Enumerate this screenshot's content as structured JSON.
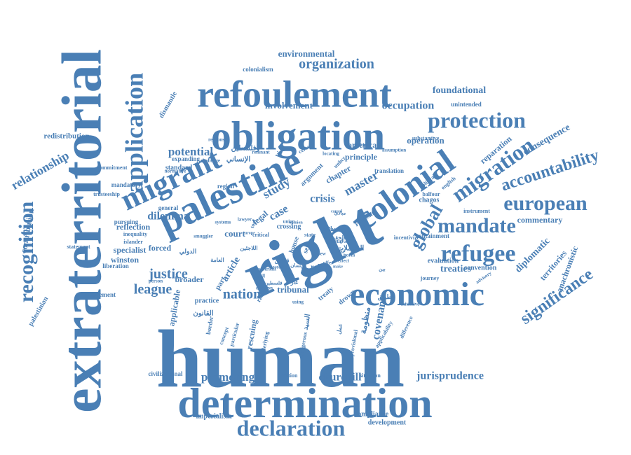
{
  "color": "#4a7fb5",
  "words": [
    {
      "text": "human"
    },
    {
      "text": "right"
    },
    {
      "text": "extraterritorial"
    },
    {
      "text": "determination"
    },
    {
      "text": "palestine"
    },
    {
      "text": "obligation"
    },
    {
      "text": "refoulement"
    },
    {
      "text": "colonial"
    },
    {
      "text": "economic"
    },
    {
      "text": "migrant"
    },
    {
      "text": "application"
    },
    {
      "text": "recognition"
    },
    {
      "text": "declaration"
    },
    {
      "text": "migration"
    },
    {
      "text": "protection"
    },
    {
      "text": "refugee"
    },
    {
      "text": "mandate"
    },
    {
      "text": "european"
    },
    {
      "text": "accountability"
    },
    {
      "text": "global"
    },
    {
      "text": "significance"
    },
    {
      "text": "organization"
    },
    {
      "text": "relationship"
    },
    {
      "text": "justice"
    },
    {
      "text": "league"
    },
    {
      "text": "nation"
    },
    {
      "text": "promoting"
    },
    {
      "text": "churchill"
    },
    {
      "text": "jurisprudence"
    },
    {
      "text": "occupation"
    },
    {
      "text": "potential"
    },
    {
      "text": "dilemma"
    },
    {
      "text": "foundational"
    },
    {
      "text": "consequence"
    },
    {
      "text": "study"
    },
    {
      "text": "master"
    },
    {
      "text": "crisis"
    },
    {
      "text": "case"
    },
    {
      "text": "covenant"
    },
    {
      "text": "treaties"
    },
    {
      "text": "diplomatic"
    },
    {
      "text": "contribution"
    },
    {
      "text": "environmental"
    },
    {
      "text": "involvement"
    },
    {
      "text": "operation"
    },
    {
      "text": "american"
    },
    {
      "text": "principle"
    },
    {
      "text": "chapter"
    },
    {
      "text": "court"
    },
    {
      "text": "article"
    },
    {
      "text": "legal"
    },
    {
      "text": "reflection"
    },
    {
      "text": "specialist"
    },
    {
      "text": "winston"
    },
    {
      "text": "forced"
    },
    {
      "text": "broader"
    },
    {
      "text": "applicable"
    },
    {
      "text": "rescuing"
    },
    {
      "text": "commentary"
    },
    {
      "text": "reparation"
    },
    {
      "text": "territories"
    },
    {
      "text": "anachronistic"
    },
    {
      "text": "redistribution"
    },
    {
      "text": "dismantle"
    },
    {
      "text": "palestinian"
    },
    {
      "text": "imperialism"
    },
    {
      "text": "compliance"
    },
    {
      "text": "development"
    },
    {
      "text": "colonialism"
    },
    {
      "text": "standard"
    },
    {
      "text": "expanding"
    },
    {
      "text": "unintended"
    },
    {
      "text": "substantive"
    },
    {
      "text": "civilizational"
    },
    {
      "text": "mandatory"
    },
    {
      "text": "commitment"
    },
    {
      "text": "trusteeship"
    },
    {
      "text": "pursuing"
    },
    {
      "text": "inequality"
    },
    {
      "text": "islander"
    },
    {
      "text": "liberation"
    },
    {
      "text": "movement"
    },
    {
      "text": "statement"
    },
    {
      "text": "general"
    },
    {
      "text": "region"
    },
    {
      "text": "practice"
    },
    {
      "text": "question"
    },
    {
      "text": "situation"
    },
    {
      "text": "drown"
    },
    {
      "text": "treaty"
    },
    {
      "text": "evaluation"
    },
    {
      "text": "convention"
    },
    {
      "text": "instrument"
    },
    {
      "text": "containment"
    },
    {
      "text": "chagos"
    },
    {
      "text": "balfour"
    },
    {
      "text": "political"
    },
    {
      "text": "english"
    },
    {
      "text": "translation"
    },
    {
      "text": "argument"
    },
    {
      "text": "unhcr"
    },
    {
      "text": "crossing"
    },
    {
      "text": "house"
    },
    {
      "text": "self"
    },
    {
      "text": "state"
    },
    {
      "text": "role"
    },
    {
      "text": "part"
    },
    {
      "text": "racism"
    },
    {
      "text": "border"
    },
    {
      "text": "concept"
    },
    {
      "text": "particular"
    },
    {
      "text": "underlying"
    },
    {
      "text": "dangerous"
    },
    {
      "text": "provisional"
    },
    {
      "text": "applicability"
    },
    {
      "text": "difference"
    },
    {
      "text": "initiative"
    },
    {
      "text": "journey"
    },
    {
      "text": "advisory"
    },
    {
      "text": "incentivize"
    },
    {
      "text": "present"
    },
    {
      "text": "clause"
    },
    {
      "text": "issue"
    },
    {
      "text": "value"
    },
    {
      "text": "vire"
    },
    {
      "text": "certain"
    },
    {
      "text": "position"
    },
    {
      "text": "assumption"
    },
    {
      "text": "locating"
    },
    {
      "text": "remnant"
    },
    {
      "text": "challenge"
    },
    {
      "text": "response"
    },
    {
      "text": "normative"
    },
    {
      "text": "smuggler"
    },
    {
      "text": "systems"
    },
    {
      "text": "person"
    },
    {
      "text": "decision"
    },
    {
      "text": "critical"
    },
    {
      "text": "tool"
    },
    {
      "text": "union"
    },
    {
      "text": "lawyer"
    },
    {
      "text": "opinion"
    },
    {
      "text": "europe"
    },
    {
      "text": "maastricht"
    },
    {
      "text": "world"
    },
    {
      "text": "view"
    },
    {
      "text": "offer"
    },
    {
      "text": "norm"
    },
    {
      "text": "effect"
    },
    {
      "text": "make"
    },
    {
      "text": "causal"
    },
    {
      "text": "using"
    },
    {
      "text": "tribunal"
    },
    {
      "text": "السيد"
    },
    {
      "text": "القانون"
    },
    {
      "text": "الدولي"
    },
    {
      "text": "منظومة"
    },
    {
      "text": "الإنساني"
    },
    {
      "text": "وفلسطين"
    },
    {
      "text": "الشاملات"
    },
    {
      "text": "استعماري"
    },
    {
      "text": "العامة"
    },
    {
      "text": "الحقوق"
    },
    {
      "text": "نضال"
    },
    {
      "text": "عمل"
    },
    {
      "text": "غاز"
    },
    {
      "text": "تطبيق"
    },
    {
      "text": "اللاجئين"
    },
    {
      "text": "قوانين"
    },
    {
      "text": "الإنسان"
    },
    {
      "text": "فلسطين"
    },
    {
      "text": "الدول"
    },
    {
      "text": "بين"
    },
    {
      "text": "مبادئ"
    },
    {
      "text": "جوانب"
    }
  ]
}
